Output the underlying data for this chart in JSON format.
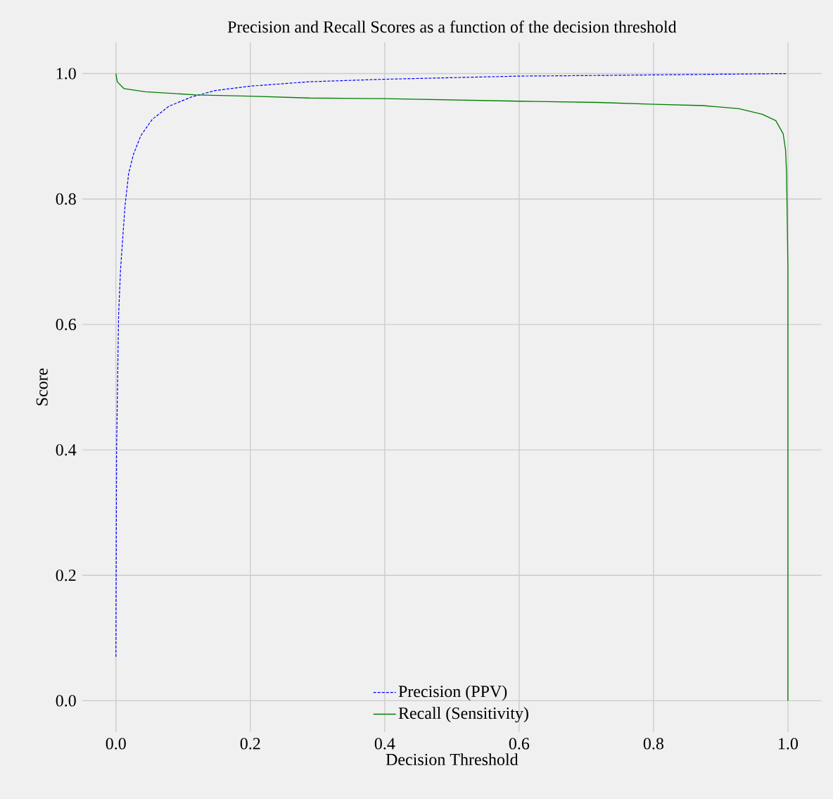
{
  "chart_data": {
    "type": "line",
    "title": "Precision and Recall Scores as a function of the decision threshold",
    "xlabel": "Decision Threshold",
    "ylabel": "Score",
    "xlim": [
      -0.05,
      1.05
    ],
    "ylim": [
      -0.05,
      1.05
    ],
    "xticks": [
      {
        "value": 0,
        "label": "0.0"
      },
      0.2,
      0.4,
      0.6,
      0.8,
      {
        "value": 1,
        "label": "1.0"
      }
    ],
    "yticks": [
      {
        "value": 0,
        "label": "0.0"
      },
      0.2,
      0.4,
      0.6,
      0.8,
      {
        "value": 1,
        "label": "1.0"
      }
    ],
    "grid": true,
    "legend": "bottom",
    "marker": "none",
    "series": [
      {
        "name": "Precision (PPV)",
        "color": "#0000ff",
        "line_style": "dashed",
        "x": [
          0.0,
          0.001,
          0.004,
          0.007,
          0.0136,
          0.019,
          0.026,
          0.037,
          0.054,
          0.079,
          0.113,
          0.148,
          0.2,
          0.288,
          0.4,
          0.6,
          0.717,
          0.997
        ],
        "values": [
          0.07,
          0.4,
          0.616,
          0.69,
          0.79,
          0.841,
          0.871,
          0.901,
          0.927,
          0.948,
          0.963,
          0.973,
          0.98,
          0.987,
          0.991,
          0.996,
          0.997,
          1.0
        ]
      },
      {
        "name": "Recall (Sensitivity)",
        "color": "#008000",
        "line_style": "solid",
        "x": [
          0.0,
          0.002,
          0.012,
          0.044,
          0.12,
          0.2,
          0.288,
          0.4,
          0.6,
          0.717,
          0.801,
          0.874,
          0.927,
          0.962,
          0.982,
          0.993,
          0.9965,
          0.998,
          1.0,
          1.0
        ],
        "values": [
          1.0,
          0.987,
          0.976,
          0.971,
          0.966,
          0.964,
          0.961,
          0.96,
          0.956,
          0.954,
          0.951,
          0.949,
          0.944,
          0.935,
          0.925,
          0.904,
          0.878,
          0.841,
          0.69,
          0.0
        ]
      }
    ]
  }
}
